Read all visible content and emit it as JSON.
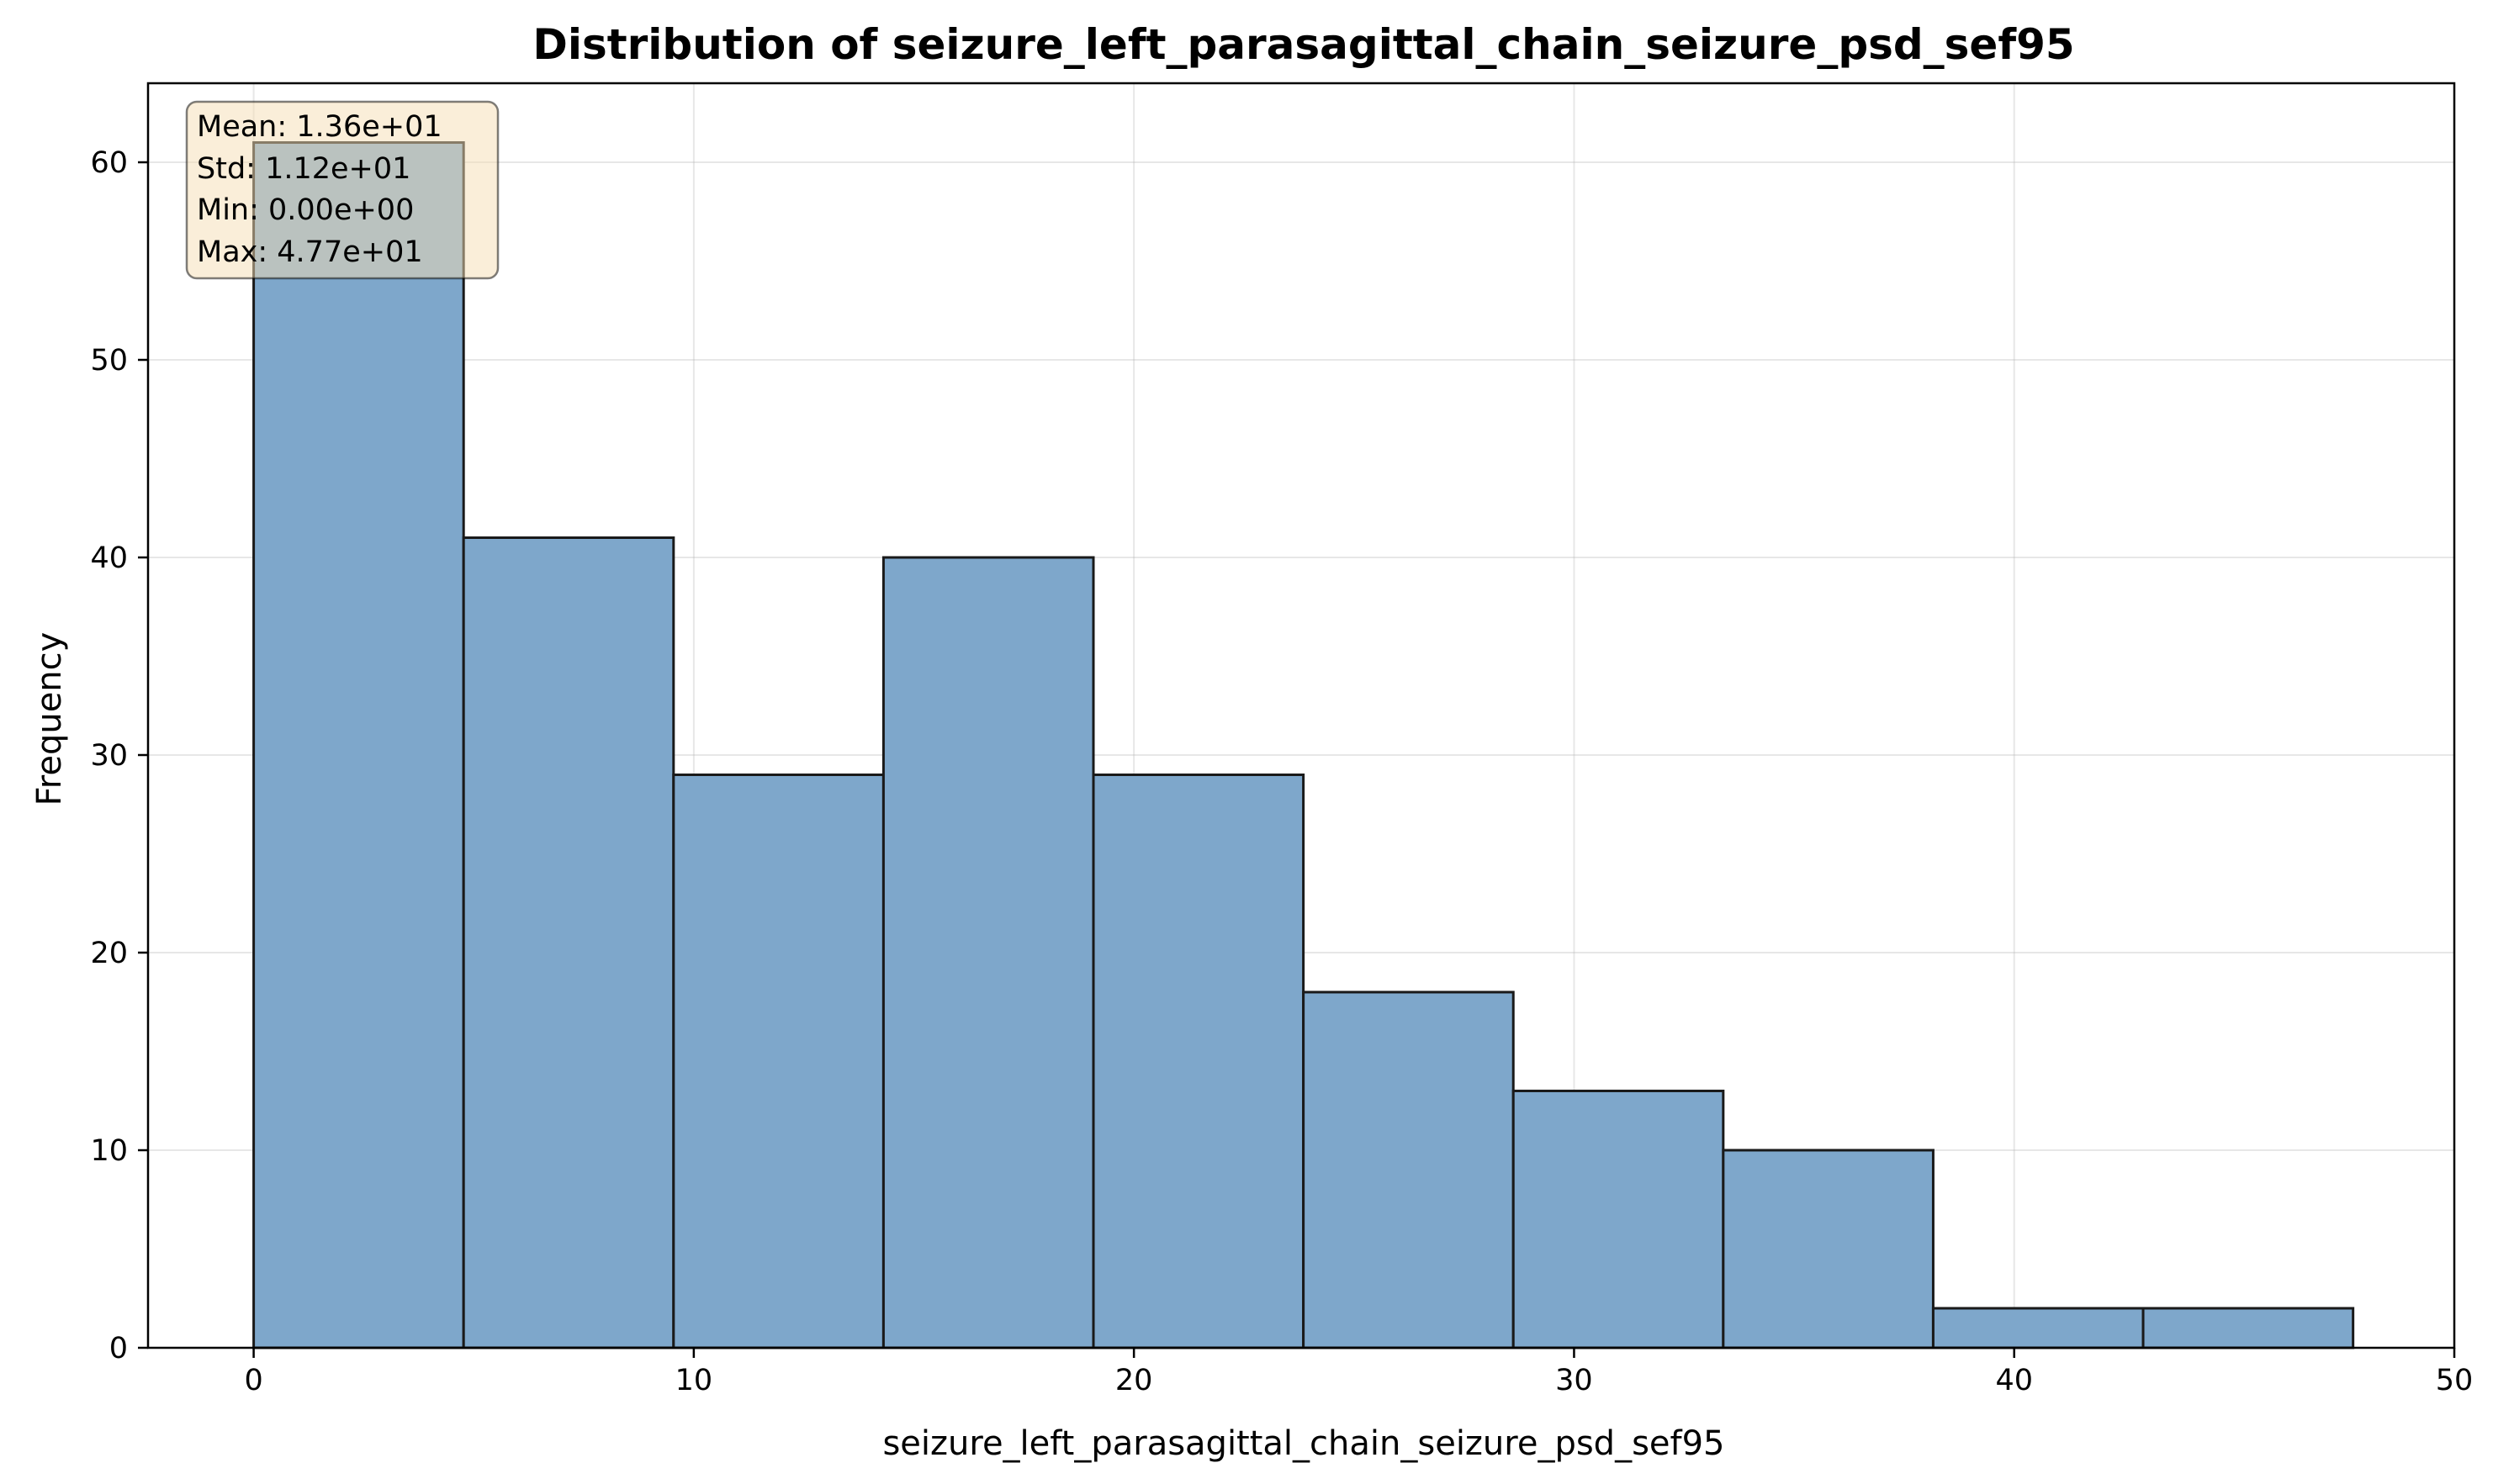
{
  "chart_data": {
    "type": "bar",
    "title": "Distribution of seizure_left_parasagittal_chain_seizure_psd_sef95",
    "xlabel": "seizure_left_parasagittal_chain_seizure_psd_sef95",
    "ylabel": "Frequency",
    "xlim": [
      -2.4,
      50.0
    ],
    "ylim": [
      0,
      64
    ],
    "xticks": [
      0,
      10,
      20,
      30,
      40,
      50
    ],
    "yticks": [
      0,
      10,
      20,
      30,
      40,
      50,
      60
    ],
    "grid": true,
    "bins": [
      {
        "x0": 0.0,
        "x1": 4.77,
        "count": 61
      },
      {
        "x0": 4.77,
        "x1": 9.54,
        "count": 41
      },
      {
        "x0": 9.54,
        "x1": 14.31,
        "count": 29
      },
      {
        "x0": 14.31,
        "x1": 19.08,
        "count": 40
      },
      {
        "x0": 19.08,
        "x1": 23.85,
        "count": 29
      },
      {
        "x0": 23.85,
        "x1": 28.62,
        "count": 18
      },
      {
        "x0": 28.62,
        "x1": 33.39,
        "count": 13
      },
      {
        "x0": 33.39,
        "x1": 38.16,
        "count": 10
      },
      {
        "x0": 38.16,
        "x1": 42.93,
        "count": 2
      },
      {
        "x0": 42.93,
        "x1": 47.7,
        "count": 2
      }
    ],
    "bar_color": "#7ea7cb",
    "edge_color": "#1a1a1a",
    "stats_box_position": "top-left",
    "stats": [
      "Mean: 1.36e+01",
      "Std: 1.12e+01",
      "Min: 0.00e+00",
      "Max: 4.77e+01"
    ]
  }
}
